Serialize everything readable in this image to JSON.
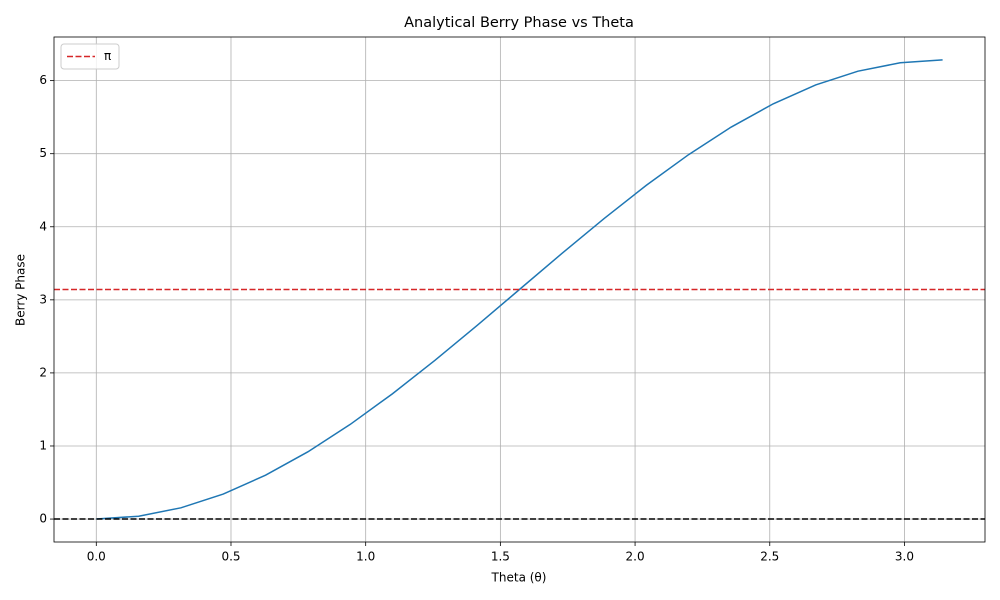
{
  "chart_data": {
    "type": "line",
    "title": "Analytical Berry Phase vs Theta",
    "xlabel": "Theta (θ)",
    "ylabel": "Berry Phase",
    "x": [
      0,
      0.1571,
      0.3142,
      0.4712,
      0.6283,
      0.7854,
      0.9425,
      1.0996,
      1.2566,
      1.4137,
      1.5708,
      1.7279,
      1.885,
      2.042,
      2.1991,
      2.3562,
      2.5133,
      2.6704,
      2.8274,
      2.9845,
      3.1416
    ],
    "series": [
      {
        "color": "#1f77b4",
        "values": [
          0,
          0.0387,
          0.1538,
          0.3424,
          0.6,
          0.9201,
          1.295,
          1.7153,
          2.1708,
          2.6501,
          3.1416,
          3.633,
          4.1124,
          4.5678,
          4.9882,
          5.363,
          5.6832,
          5.9408,
          6.1294,
          6.2445,
          6.2832
        ]
      }
    ],
    "hlines": [
      {
        "name": "π",
        "value": 3.1416,
        "color": "#d62728"
      },
      {
        "value": 0,
        "color": "#000000"
      }
    ],
    "xlim": [
      -0.157,
      3.299
    ],
    "ylim": [
      -0.314,
      6.597
    ],
    "xticks": [
      {
        "value": 0,
        "label": "0.0"
      },
      {
        "value": 0.5,
        "label": "0.5"
      },
      {
        "value": 1,
        "label": "1.0"
      },
      {
        "value": 1.5,
        "label": "1.5"
      },
      {
        "value": 2,
        "label": "2.0"
      },
      {
        "value": 2.5,
        "label": "2.5"
      },
      {
        "value": 3,
        "label": "3.0"
      }
    ],
    "yticks": [
      0,
      1,
      2,
      3,
      4,
      5,
      6
    ],
    "grid": true,
    "legend": "upper left"
  }
}
